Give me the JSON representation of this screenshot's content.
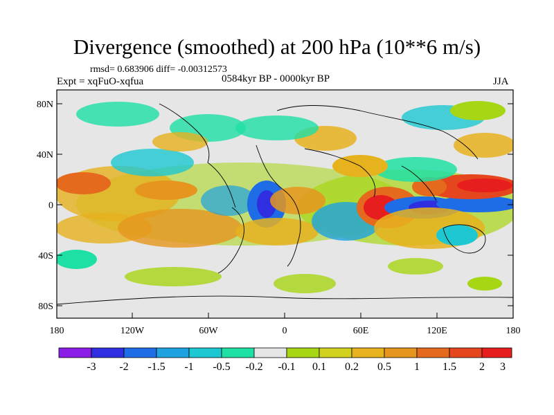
{
  "title": "Divergence (smoothed) at 200 hPa (10**6 m/s)",
  "stats": "rmsd= 0.683906 diff= -0.00312573",
  "experiment": "Expt = xqFuO-xqfua",
  "period": "0584kyr BP - 0000kyr BP",
  "season": "JJA",
  "axes": {
    "lat_ticks": [
      "80N",
      "40N",
      "0",
      "40S",
      "80S"
    ],
    "lon_ticks": [
      "180",
      "120W",
      "60W",
      "0",
      "60E",
      "120E",
      "180"
    ]
  },
  "colorbar": {
    "colors": [
      "#8a1ee6",
      "#2f2ee0",
      "#1f6de6",
      "#1ea3e0",
      "#1ec8d2",
      "#1ee0a5",
      "#e6e6e6",
      "#a6d614",
      "#d2d21e",
      "#e6b21e",
      "#e6961e",
      "#e66a1e",
      "#e6461e",
      "#e61e1e"
    ],
    "labels": [
      "-3",
      "-2",
      "-1.5",
      "-1",
      "-0.5",
      "-0.2",
      "-0.1",
      "0.1",
      "0.2",
      "0.5",
      "1",
      "1.5",
      "2",
      "3"
    ]
  }
}
